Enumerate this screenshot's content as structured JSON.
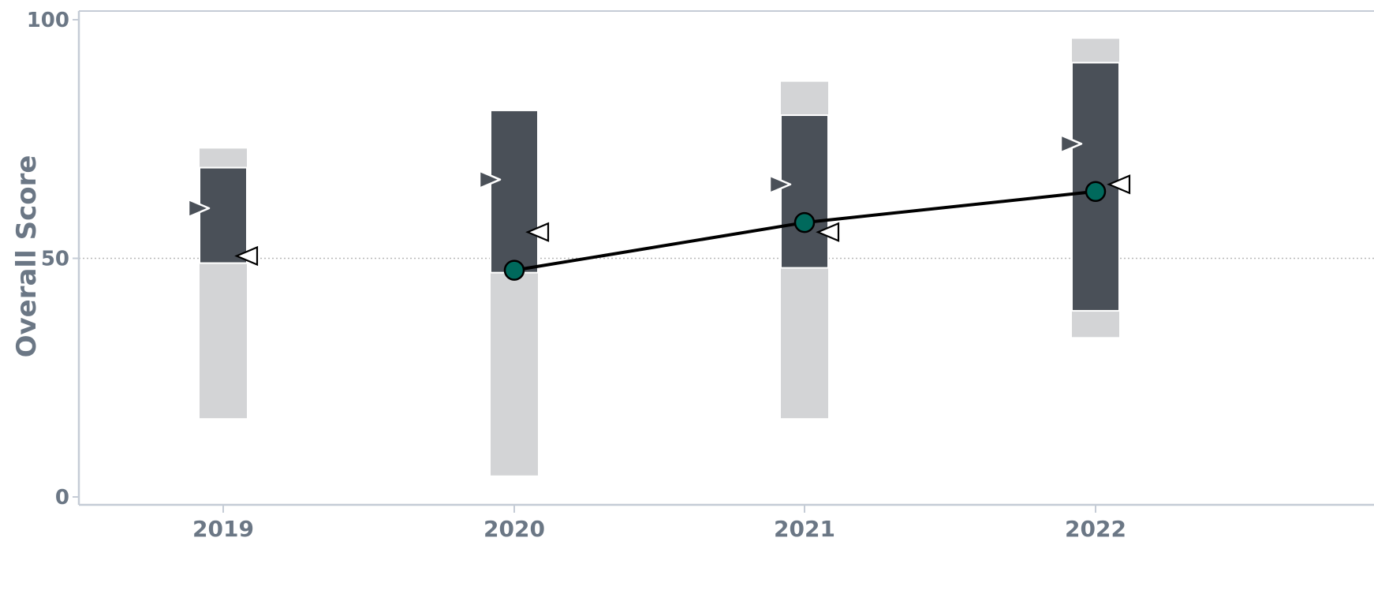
{
  "chart_data": {
    "type": "bar",
    "ylabel": "Overall Score",
    "xlabel": "",
    "ylim": [
      0,
      100
    ],
    "yticks": [
      0,
      50,
      100
    ],
    "reference_line": 50,
    "categories": [
      "2019",
      "2020",
      "2021",
      "2022"
    ],
    "range_outer": [
      {
        "low": 16.5,
        "high": 73
      },
      {
        "low": 4.5,
        "high": 81
      },
      {
        "low": 16.5,
        "high": 87
      },
      {
        "low": 33.5,
        "high": 96
      }
    ],
    "range_inner": [
      {
        "low": 49,
        "high": 69
      },
      {
        "low": 47,
        "high": 81
      },
      {
        "low": 48,
        "high": 80
      },
      {
        "low": 39,
        "high": 91
      }
    ],
    "left_markers": [
      60.5,
      66.5,
      65.5,
      74
    ],
    "right_markers": [
      50.5,
      55.5,
      55.5,
      65.5
    ],
    "series": [
      {
        "values": [
          null,
          47.5,
          57.5,
          64
        ]
      }
    ],
    "grid": false,
    "legend": "none"
  },
  "colors": {
    "outer_band": "#d3d4d6",
    "inner_band": "#4a5058",
    "line": "#000000",
    "point_fill": "#00695c",
    "axis": "#c5ccd6",
    "tick_text": "#6b7785",
    "reference_line": "#b8b8b8"
  }
}
